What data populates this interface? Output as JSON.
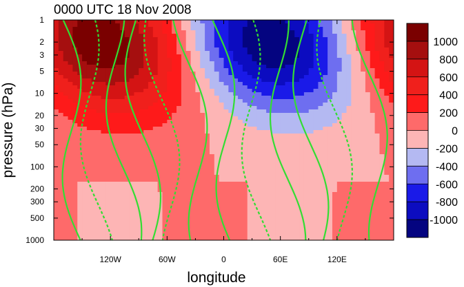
{
  "chart_data": {
    "type": "heatmap",
    "title": "0000 UTC 18 Nov 2008",
    "xlabel": "longitude",
    "ylabel": "pressure (hPa)",
    "x_range": [
      -180,
      180
    ],
    "y_range": [
      1,
      1000
    ],
    "y_scale": "log",
    "y_inverted": true,
    "x_ticks": [
      {
        "value": -120,
        "label": "120W"
      },
      {
        "value": -60,
        "label": "60W"
      },
      {
        "value": 0,
        "label": "0"
      },
      {
        "value": 60,
        "label": "60E"
      },
      {
        "value": 120,
        "label": "120E"
      }
    ],
    "y_ticks": [
      {
        "value": 1,
        "label": "1"
      },
      {
        "value": 2,
        "label": "2"
      },
      {
        "value": 3,
        "label": "3"
      },
      {
        "value": 5,
        "label": "5"
      },
      {
        "value": 10,
        "label": "10"
      },
      {
        "value": 20,
        "label": "20"
      },
      {
        "value": 30,
        "label": "30"
      },
      {
        "value": 50,
        "label": "50"
      },
      {
        "value": 100,
        "label": "100"
      },
      {
        "value": 200,
        "label": "200"
      },
      {
        "value": 300,
        "label": "300"
      },
      {
        "value": 500,
        "label": "500"
      },
      {
        "value": 1000,
        "label": "1000"
      }
    ],
    "colorbar": {
      "labels": [
        "1000",
        "800",
        "600",
        "400",
        "200",
        "0",
        "-200",
        "-400",
        "-600",
        "-800",
        "-1000"
      ],
      "colors": [
        "#7a0000",
        "#a50f0f",
        "#d41414",
        "#f0201c",
        "#fe1a1a",
        "#fe6a6a",
        "#fdb5b5",
        "#b4b9f2",
        "#6e6ef0",
        "#1a1ae8",
        "#0c0cc0",
        "#040480"
      ]
    },
    "field": {
      "description_levels": [
        -1000,
        -800,
        -600,
        -400,
        -200,
        0,
        200,
        400,
        600,
        800,
        1000
      ],
      "positive_center_lon": -130,
      "negative_center_lon": 35,
      "peak_pressure_hPa": 2
    },
    "overlay_color": "#33dd33"
  }
}
